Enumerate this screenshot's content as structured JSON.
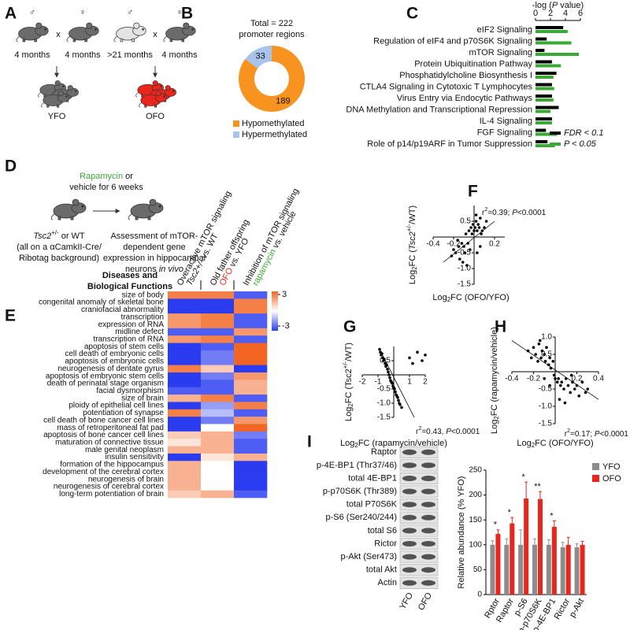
{
  "panel_labels": [
    "A",
    "B",
    "C",
    "D",
    "E",
    "F",
    "G",
    "H",
    "I"
  ],
  "panel_a": {
    "pairs": [
      {
        "father": "♂",
        "cross": "x",
        "mother": "♀",
        "father_age": "4 months",
        "mother_age": "4 months",
        "offspring": "YFO",
        "offspring_color": "#000000",
        "father_color": "#6b6b6b",
        "mother_color": "#6b6b6b",
        "pup_color": "#6b6b6b"
      },
      {
        "father": "♂",
        "cross": "x",
        "mother": "♀",
        "father_age": ">21 months",
        "mother_age": "4 months",
        "offspring": "OFO",
        "offspring_color": "#e8261c",
        "father_color": "#e4e4e4",
        "mother_color": "#6b6b6b",
        "pup_color": "#e8261c"
      }
    ]
  },
  "panel_d": {
    "treatment": [
      {
        "t": "Rapamycin",
        "s": "green"
      },
      {
        "t": " or"
      }
    ],
    "treatment_2": "vehicle for 6 weeks",
    "genotype": [
      {
        "t": "Tsc2",
        "s": "i"
      },
      {
        "t": "+/-",
        "s": "sup"
      },
      {
        "t": " or WT"
      }
    ],
    "background": [
      "(all on a αCamkII-Cre/",
      "Ribotag background)"
    ],
    "outcome": [
      "Assessment of mTOR-",
      "dependent gene",
      "expression in hippocampal",
      [
        {
          "t": "neurons "
        },
        {
          "t": "in vivo",
          "s": "i"
        }
      ]
    ]
  },
  "blot": {
    "rows": [
      "Raptor",
      "p-4E-BP1 (Thr37/46)",
      "total 4E-BP1",
      "p-p70S6K (Thr389)",
      "total P70S6K",
      "p-S6 (Ser240/244)",
      "total S6",
      "Rictor",
      "p-Akt (Ser473)",
      "total Akt",
      "Actin"
    ],
    "lanes": [
      "YFO",
      "OFO"
    ]
  },
  "chart_data": [
    {
      "type": "pie",
      "title": "Total = 222",
      "subtitle": "promoter regions",
      "labels": [
        "Hypomethylated",
        "Hypermethylated"
      ],
      "values": [
        189,
        33
      ],
      "colors": [
        "#f7931e",
        "#a9c4eb"
      ],
      "donut": true
    },
    {
      "type": "barh",
      "xlabel": [
        {
          "t": "-log ("
        },
        {
          "t": "P",
          "s": "i"
        },
        {
          "t": " value)"
        }
      ],
      "categories": [
        "eIF2 Signaling",
        "Regulation of eIF4 and p70S6K Signaling",
        "mTOR Signaling",
        "Protein Ubiquitination Pathway",
        "Phosphatidylcholine Biosynthesis I",
        "CTLA4 Signaling in Cytotoxic T Lymphocytes",
        "Virus Entry via Endocytic Pathways",
        "DNA Methylation and Transcriptional Repression",
        "IL-4 Signaling",
        "FGF Signaling",
        "Role of p14/p19ARF in Tumor Suppression"
      ],
      "series": [
        {
          "name": "FDR < 0.1",
          "color": "#000000",
          "values": [
            3.7,
            1.5,
            1.2,
            2.2,
            2.8,
            2.2,
            2.2,
            3.1,
            2.2,
            1.4,
            1.6
          ]
        },
        {
          "name": "P < 0.05",
          "color": "#3aaa35",
          "values": [
            4.3,
            4.8,
            5.8,
            3.4,
            2.4,
            2.5,
            2.4,
            2.0,
            2.2,
            2.9,
            2.6
          ]
        }
      ],
      "xlim": [
        0,
        6
      ],
      "xticks": [
        0,
        2,
        4,
        6
      ],
      "legend": "lower right"
    },
    {
      "type": "heatmap",
      "title": [
        "Diseases and",
        "Biological Functions"
      ],
      "columns": [
        [
          "Overactive mTOR signaling",
          [
            {
              "t": "Tsc2+/-",
              "s": "i"
            },
            {
              "t": " vs. WT"
            }
          ]
        ],
        [
          "Old father offspring",
          [
            {
              "t": "OFO",
              "s": "red"
            },
            {
              "t": " vs. YFO"
            }
          ]
        ],
        [
          "Inhibition of mTOR signaling",
          [
            {
              "t": "rapamycin",
              "s": "green"
            },
            {
              "t": " vs. vehicle"
            }
          ]
        ]
      ],
      "rows": [
        "size of body",
        "congenital anomaly of skeletal bone",
        "craniofacial abnormality",
        "transcription",
        "expression of RNA",
        "midline defect",
        "transcription of RNA",
        "apoptosis of stem cells",
        "cell death of embryonic cells",
        "apoptosis of embryonic cells",
        "neurogenesis of dentate gyrus",
        "apoptosis of embryonic stem cells",
        "death of perinatal stage organism",
        "facial dysmorphism",
        "size of brain",
        "ploidy of epithelial cell lines",
        "potentiation of synapse",
        "cell death of bone cancer cell lines",
        "mass of retroperitoneal fat pad",
        "apoptosis of bone cancer cell lines",
        "maturation of connective tissue",
        "male genital neoplasm",
        "insulin sensitivity",
        "formation of the hippocampus",
        "development of the cerebral cortex",
        "neurogenesis of brain",
        "neurogenesis of cerebral cortex",
        "long-term potentiation of brain"
      ],
      "values": [
        [
          2.5,
          2.5,
          -2.5
        ],
        [
          -3,
          -3,
          2.5
        ],
        [
          -3,
          -3,
          2.5
        ],
        [
          2,
          2.5,
          -2.5
        ],
        [
          2,
          2.5,
          -2.5
        ],
        [
          -2.5,
          -2.5,
          2
        ],
        [
          2,
          2.5,
          -2.5
        ],
        [
          -3,
          -2.5,
          3
        ],
        [
          -3,
          -2,
          3
        ],
        [
          -3,
          -2,
          3
        ],
        [
          2.5,
          1,
          -3
        ],
        [
          -3,
          -2,
          2
        ],
        [
          -3,
          -2.5,
          1.5
        ],
        [
          -2.5,
          -2.5,
          1.5
        ],
        [
          1.5,
          2.5,
          -2.5
        ],
        [
          -3,
          -1.5,
          2.5
        ],
        [
          2.5,
          -1,
          -2.5
        ],
        [
          -3,
          -2,
          2
        ],
        [
          -3,
          0,
          3
        ],
        [
          1,
          1.5,
          -2
        ],
        [
          0.5,
          1.5,
          -2.5
        ],
        [
          1.5,
          1.5,
          -2.5
        ],
        [
          -3,
          0.5,
          1.5
        ],
        [
          1.5,
          0,
          -3
        ],
        [
          1.5,
          0,
          -3
        ],
        [
          1.5,
          0,
          -3
        ],
        [
          1.5,
          0,
          -3
        ],
        [
          1,
          1.5,
          -2.5
        ]
      ],
      "clim": [
        -3,
        3
      ],
      "colormap": [
        "#2b3cf0",
        "#ffffff",
        "#f26522"
      ],
      "cbar_ticks": [
        3,
        -3
      ]
    },
    {
      "type": "scatter",
      "x": [
        -0.22,
        -0.2,
        -0.18,
        -0.15,
        -0.14,
        -0.12,
        -0.1,
        -0.09,
        -0.08,
        -0.06,
        -0.05,
        -0.04,
        -0.03,
        -0.02,
        -0.01,
        0.0,
        0.01,
        0.02,
        0.03,
        0.04,
        0.05,
        0.06,
        0.07,
        0.08,
        0.1,
        0.12,
        -0.11,
        -0.07,
        0.03,
        0.06,
        -0.16,
        0.02
      ],
      "y": [
        -0.6,
        -0.4,
        -0.5,
        -0.3,
        -0.7,
        -0.2,
        -0.3,
        -0.5,
        0.1,
        -0.2,
        0.2,
        -0.4,
        0.3,
        0.1,
        0.4,
        0.2,
        0.3,
        0.5,
        0.2,
        0.4,
        0.3,
        0.6,
        0.1,
        0.2,
        0.3,
        0.5,
        -0.8,
        -0.9,
        -0.5,
        -0.3,
        -0.1,
        0.7
      ],
      "fit": {
        "x": [
          -0.3,
          0.2
        ],
        "y": [
          -0.8,
          0.5
        ]
      },
      "xlim": [
        -0.4,
        0.3
      ],
      "xticks": [
        -0.4,
        -0.2,
        0.2
      ],
      "ylim": [
        -1.5,
        1.0
      ],
      "yticks": [
        0.5,
        -0.5,
        {
          "value": -1,
          "label": "-1.0"
        },
        -1.5
      ],
      "xlabel": [
        {
          "t": "Log"
        },
        {
          "t": "2",
          "s": "sub"
        },
        {
          "t": "FC (OFO/YFO)"
        }
      ],
      "ylabel": [
        {
          "t": "Log"
        },
        {
          "t": "2",
          "s": "sub"
        },
        {
          "t": "FC ("
        },
        {
          "t": "Tsc2",
          "s": "i"
        },
        {
          "t": "+/-",
          "s": "sup"
        },
        {
          "t": "/WT)"
        }
      ],
      "annotation": [
        {
          "t": "r"
        },
        {
          "t": "2",
          "s": "sup"
        },
        {
          "t": "=0.39; "
        },
        {
          "t": "P",
          "s": "i"
        },
        {
          "t": "<0.0001"
        }
      ]
    },
    {
      "type": "scatter",
      "x": [
        -0.9,
        -0.85,
        -0.8,
        -0.75,
        -0.7,
        -0.65,
        -0.6,
        -0.55,
        -0.5,
        -0.45,
        -0.4,
        -0.35,
        -0.3,
        -0.25,
        -0.2,
        -0.15,
        -0.1,
        -0.05,
        0.0,
        0.05,
        0.1,
        0.15,
        0.2,
        0.25,
        0.3,
        0.35,
        0.4,
        0.5,
        1.0,
        1.2,
        1.5,
        1.8,
        2.0
      ],
      "y": [
        0.9,
        0.8,
        0.7,
        0.75,
        0.6,
        0.5,
        0.55,
        0.4,
        0.3,
        0.35,
        0.2,
        0.1,
        0.0,
        -0.1,
        -0.2,
        -0.25,
        -0.3,
        -0.4,
        -0.45,
        -0.5,
        -0.6,
        -0.7,
        -0.75,
        -0.8,
        -0.9,
        -1.0,
        -1.05,
        -1.15,
        0.6,
        0.4,
        0.8,
        0.5,
        0.7
      ],
      "fit": {
        "x": [
          -0.9,
          1.3
        ],
        "y": [
          0.9,
          -1.5
        ]
      },
      "xlim": [
        -2,
        2
      ],
      "xticks": [
        -2,
        -1,
        1,
        2
      ],
      "ylim": [
        -1.5,
        1.0
      ],
      "yticks": [
        0.5,
        -0.5,
        {
          "value": -1,
          "label": "-1.0"
        },
        -1.5
      ],
      "xlabel": [
        {
          "t": "Log"
        },
        {
          "t": "2",
          "s": "sub"
        },
        {
          "t": "FC (rapamycin/vehicle)"
        }
      ],
      "ylabel": [
        {
          "t": "Log"
        },
        {
          "t": "2",
          "s": "sub"
        },
        {
          "t": "FC (Tsc2"
        },
        {
          "t": "+/-",
          "s": "sup"
        },
        {
          "t": "/WT)"
        }
      ],
      "annotation": [
        {
          "t": "r"
        },
        {
          "t": "2",
          "s": "sup"
        },
        {
          "t": "=0.43, "
        },
        {
          "t": "P",
          "s": "i"
        },
        {
          "t": "<0.0001"
        }
      ]
    },
    {
      "type": "scatter",
      "x": [
        -0.25,
        -0.22,
        -0.2,
        -0.18,
        -0.16,
        -0.15,
        -0.13,
        -0.12,
        -0.1,
        -0.09,
        -0.08,
        -0.06,
        -0.05,
        -0.04,
        -0.02,
        -0.01,
        0.0,
        0.02,
        0.03,
        0.05,
        0.06,
        0.08,
        0.1,
        0.12,
        0.14,
        0.16,
        0.18,
        0.2,
        0.22,
        0.25,
        0.28,
        0.3,
        -0.1,
        -0.05,
        0.04,
        0.09,
        0.15,
        -0.14
      ],
      "y": [
        0.6,
        0.4,
        0.7,
        0.5,
        0.3,
        0.8,
        0.4,
        0.6,
        0.5,
        0.3,
        0.7,
        0.2,
        0.4,
        0.1,
        0.3,
        -0.1,
        -0.2,
        -0.3,
        -0.2,
        -0.4,
        -0.3,
        -0.5,
        -0.2,
        -0.4,
        -0.6,
        -0.3,
        -0.5,
        -0.4,
        -0.7,
        -0.3,
        -0.6,
        -0.5,
        -0.2,
        -0.4,
        -0.8,
        -0.9,
        -0.1,
        0.9
      ],
      "fit": {
        "x": [
          -0.4,
          0.4
        ],
        "y": [
          0.9,
          -0.8
        ]
      },
      "xlim": [
        -0.4,
        0.4
      ],
      "xticks": [
        -0.4,
        -0.2,
        0.2,
        0.4
      ],
      "ylim": [
        -1.5,
        1.0
      ],
      "yticks": [
        {
          "value": 1,
          "label": "1.0"
        },
        0.5,
        -0.5,
        {
          "value": -1,
          "label": "-1.0"
        },
        -1.5
      ],
      "xlabel": [
        {
          "t": "Log"
        },
        {
          "t": "2",
          "s": "sub"
        },
        {
          "t": "FC (OFO/YFO)"
        }
      ],
      "ylabel": [
        {
          "t": "Log"
        },
        {
          "t": "2",
          "s": "sub"
        },
        {
          "t": "FC (rapamycin/vehicle)"
        }
      ],
      "annotation": [
        {
          "t": "r"
        },
        {
          "t": "2",
          "s": "sup"
        },
        {
          "t": "=0.17; "
        },
        {
          "t": "P",
          "s": "i"
        },
        {
          "t": "<0.0001"
        }
      ]
    },
    {
      "type": "bar",
      "ylabel": "Relative abundance (% YFO)",
      "categories": [
        "Rptor",
        "Raptor",
        "p-S6",
        "p-p70S6K",
        "p-4E-BP1",
        "Rictor",
        "p-Akt"
      ],
      "series": [
        {
          "name": "YFO",
          "color": "#8c8c8c",
          "values": [
            100,
            100,
            100,
            100,
            100,
            95,
            95
          ],
          "errors": [
            8,
            12,
            30,
            12,
            10,
            10,
            7
          ]
        },
        {
          "name": "OFO",
          "color": "#e8261c",
          "values": [
            122,
            143,
            193,
            192,
            136,
            100,
            100
          ],
          "errors": [
            8,
            12,
            33,
            15,
            12,
            15,
            7
          ],
          "significance": [
            "*",
            "*",
            "*",
            "**",
            "*",
            null,
            null
          ]
        }
      ],
      "ylim": [
        0,
        250
      ],
      "yticks": [
        0,
        50,
        100,
        150,
        200,
        250
      ],
      "legend": "upper right"
    }
  ]
}
